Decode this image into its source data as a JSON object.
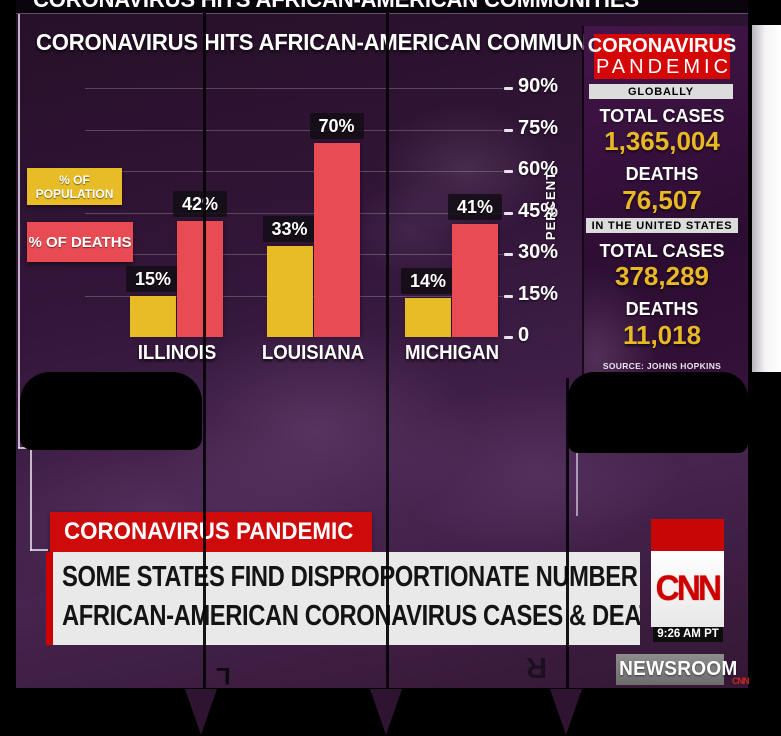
{
  "chart_data": {
    "type": "bar",
    "title": "CORONAVIRUS HITS AFRICAN-AMERICAN COMMUNITIES",
    "categories": [
      "ILLINOIS",
      "LOUISIANA",
      "MICHIGAN"
    ],
    "series": [
      {
        "name": "% OF POPULATION",
        "color": "#e7bc26",
        "values": [
          15,
          33,
          14
        ]
      },
      {
        "name": "% OF DEATHS",
        "color": "#e94b53",
        "values": [
          42,
          70,
          41
        ]
      }
    ],
    "value_labels": [
      [
        "15%",
        "33%",
        "14%"
      ],
      [
        "42%",
        "70%",
        "41%"
      ]
    ],
    "xlabel": "",
    "ylabel": "PERCENT",
    "yticks": [
      0,
      15,
      30,
      45,
      60,
      75,
      90
    ],
    "ytick_labels": [
      "0",
      "15%",
      "30%",
      "45%",
      "60%",
      "75%",
      "90%"
    ],
    "ylim": [
      0,
      97
    ],
    "grid": true,
    "legend_position": "left"
  },
  "sidebar": {
    "header_line1": "CORONAVIRUS",
    "header_line2": "PANDEMIC",
    "sections": [
      {
        "heading": "GLOBALLY",
        "stats": [
          {
            "label": "TOTAL CASES",
            "value": "1,365,004"
          },
          {
            "label": "DEATHS",
            "value": "76,507"
          }
        ]
      },
      {
        "heading": "IN THE UNITED STATES",
        "stats": [
          {
            "label": "TOTAL CASES",
            "value": "378,289"
          },
          {
            "label": "DEATHS",
            "value": "11,018"
          }
        ]
      }
    ],
    "source": "SOURCE: JOHNS HOPKINS UNIVERSITY",
    "value_color": "#e9b825",
    "header_bg": "#d40606"
  },
  "lower_third": {
    "kicker": "CORONAVIRUS PANDEMIC",
    "headline_line1": "SOME STATES FIND DISPROPORTIONATE NUMBER OF",
    "headline_line2": "AFRICAN-AMERICAN CORONAVIRUS CASES & DEATHS"
  },
  "network": {
    "logo": "CNN",
    "time": "9:26 AM PT",
    "show": "NEWSROOM",
    "watermark": "CNN"
  },
  "artifacts": {
    "corner_mark_left": "L",
    "corner_mark_right": "R"
  },
  "colors": {
    "population_bar": "#e7bc26",
    "deaths_bar": "#e94b53",
    "cnn_red": "#cc0000",
    "stat_value_yellow": "#e9b825"
  }
}
